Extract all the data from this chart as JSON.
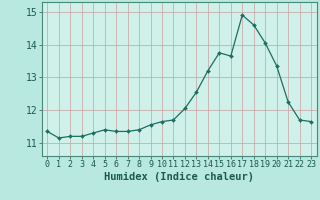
{
  "x": [
    0,
    1,
    2,
    3,
    4,
    5,
    6,
    7,
    8,
    9,
    10,
    11,
    12,
    13,
    14,
    15,
    16,
    17,
    18,
    19,
    20,
    21,
    22,
    23
  ],
  "y": [
    11.35,
    11.15,
    11.2,
    11.2,
    11.3,
    11.4,
    11.35,
    11.35,
    11.4,
    11.55,
    11.65,
    11.7,
    12.05,
    12.55,
    13.2,
    13.75,
    13.65,
    14.9,
    14.6,
    14.05,
    13.35,
    12.25,
    11.7,
    11.65
  ],
  "line_color": "#1a7060",
  "marker_color": "#1a7060",
  "bg_color": "#b8e8e0",
  "plot_bg_color": "#d0f0ea",
  "grid_color": "#c8a0a0",
  "xlabel": "Humidex (Indice chaleur)",
  "ylim": [
    10.6,
    15.3
  ],
  "xlim": [
    -0.5,
    23.5
  ],
  "yticks": [
    11,
    12,
    13,
    14,
    15
  ],
  "xticks": [
    0,
    1,
    2,
    3,
    4,
    5,
    6,
    7,
    8,
    9,
    10,
    11,
    12,
    13,
    14,
    15,
    16,
    17,
    18,
    19,
    20,
    21,
    22,
    23
  ],
  "tick_color": "#1a5a50",
  "xlabel_fontsize": 7.5,
  "ytick_fontsize": 7,
  "xtick_fontsize": 6,
  "footer_color": "#4a8878",
  "spine_color": "#4a8878"
}
